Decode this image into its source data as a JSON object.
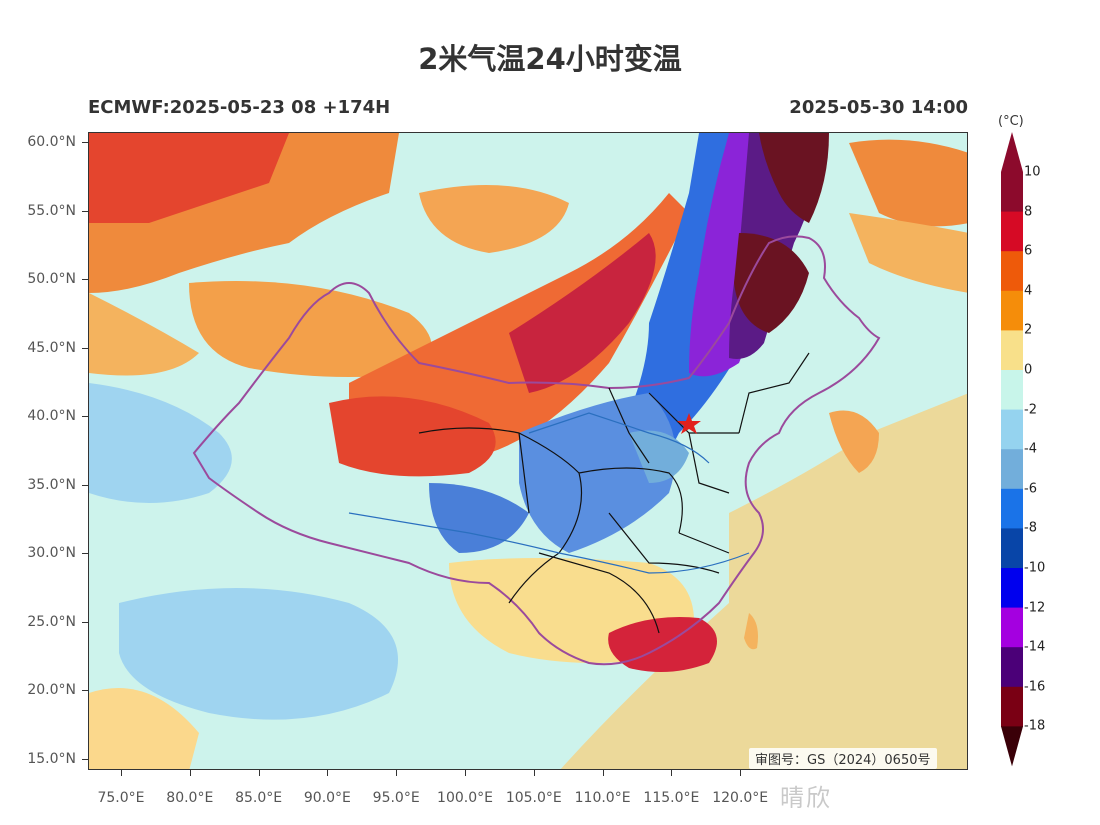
{
  "title": "2米气温24小时变温",
  "model_run": "ECMWF:2025-05-23 08 +174H",
  "valid_time": "2025-05-30 14:00",
  "lat_labels": [
    "60.0°N",
    "55.0°N",
    "50.0°N",
    "45.0°N",
    "40.0°N",
    "35.0°N",
    "30.0°N",
    "25.0°N",
    "20.0°N",
    "15.0°N"
  ],
  "lon_labels": [
    "75.0°E",
    "80.0°E",
    "85.0°E",
    "90.0°E",
    "95.0°E",
    "100.0°E",
    "105.0°E",
    "110.0°E",
    "115.0°E",
    "120.0°E"
  ],
  "colorbar": {
    "unit": "(°C)",
    "labels": [
      "10",
      "8",
      "6",
      "4",
      "2",
      "0",
      "-2",
      "-4",
      "-6",
      "-8",
      "-10",
      "-12",
      "-14",
      "-16",
      "-18"
    ],
    "colors": [
      "#8c0a2c",
      "#d60a25",
      "#ee5a0a",
      "#f58d0a",
      "#f8e08a",
      "#c8f5ea",
      "#95d3ef",
      "#72aedb",
      "#1a73e8",
      "#0845a8",
      "#0000ee",
      "#a400e0",
      "#4b0078",
      "#7a0014"
    ],
    "top_color": "#8c0a2c",
    "bottom_color": "#3a0008"
  },
  "review_number": "审图号：GS（2024）0650号",
  "watermark": "晴欣"
}
